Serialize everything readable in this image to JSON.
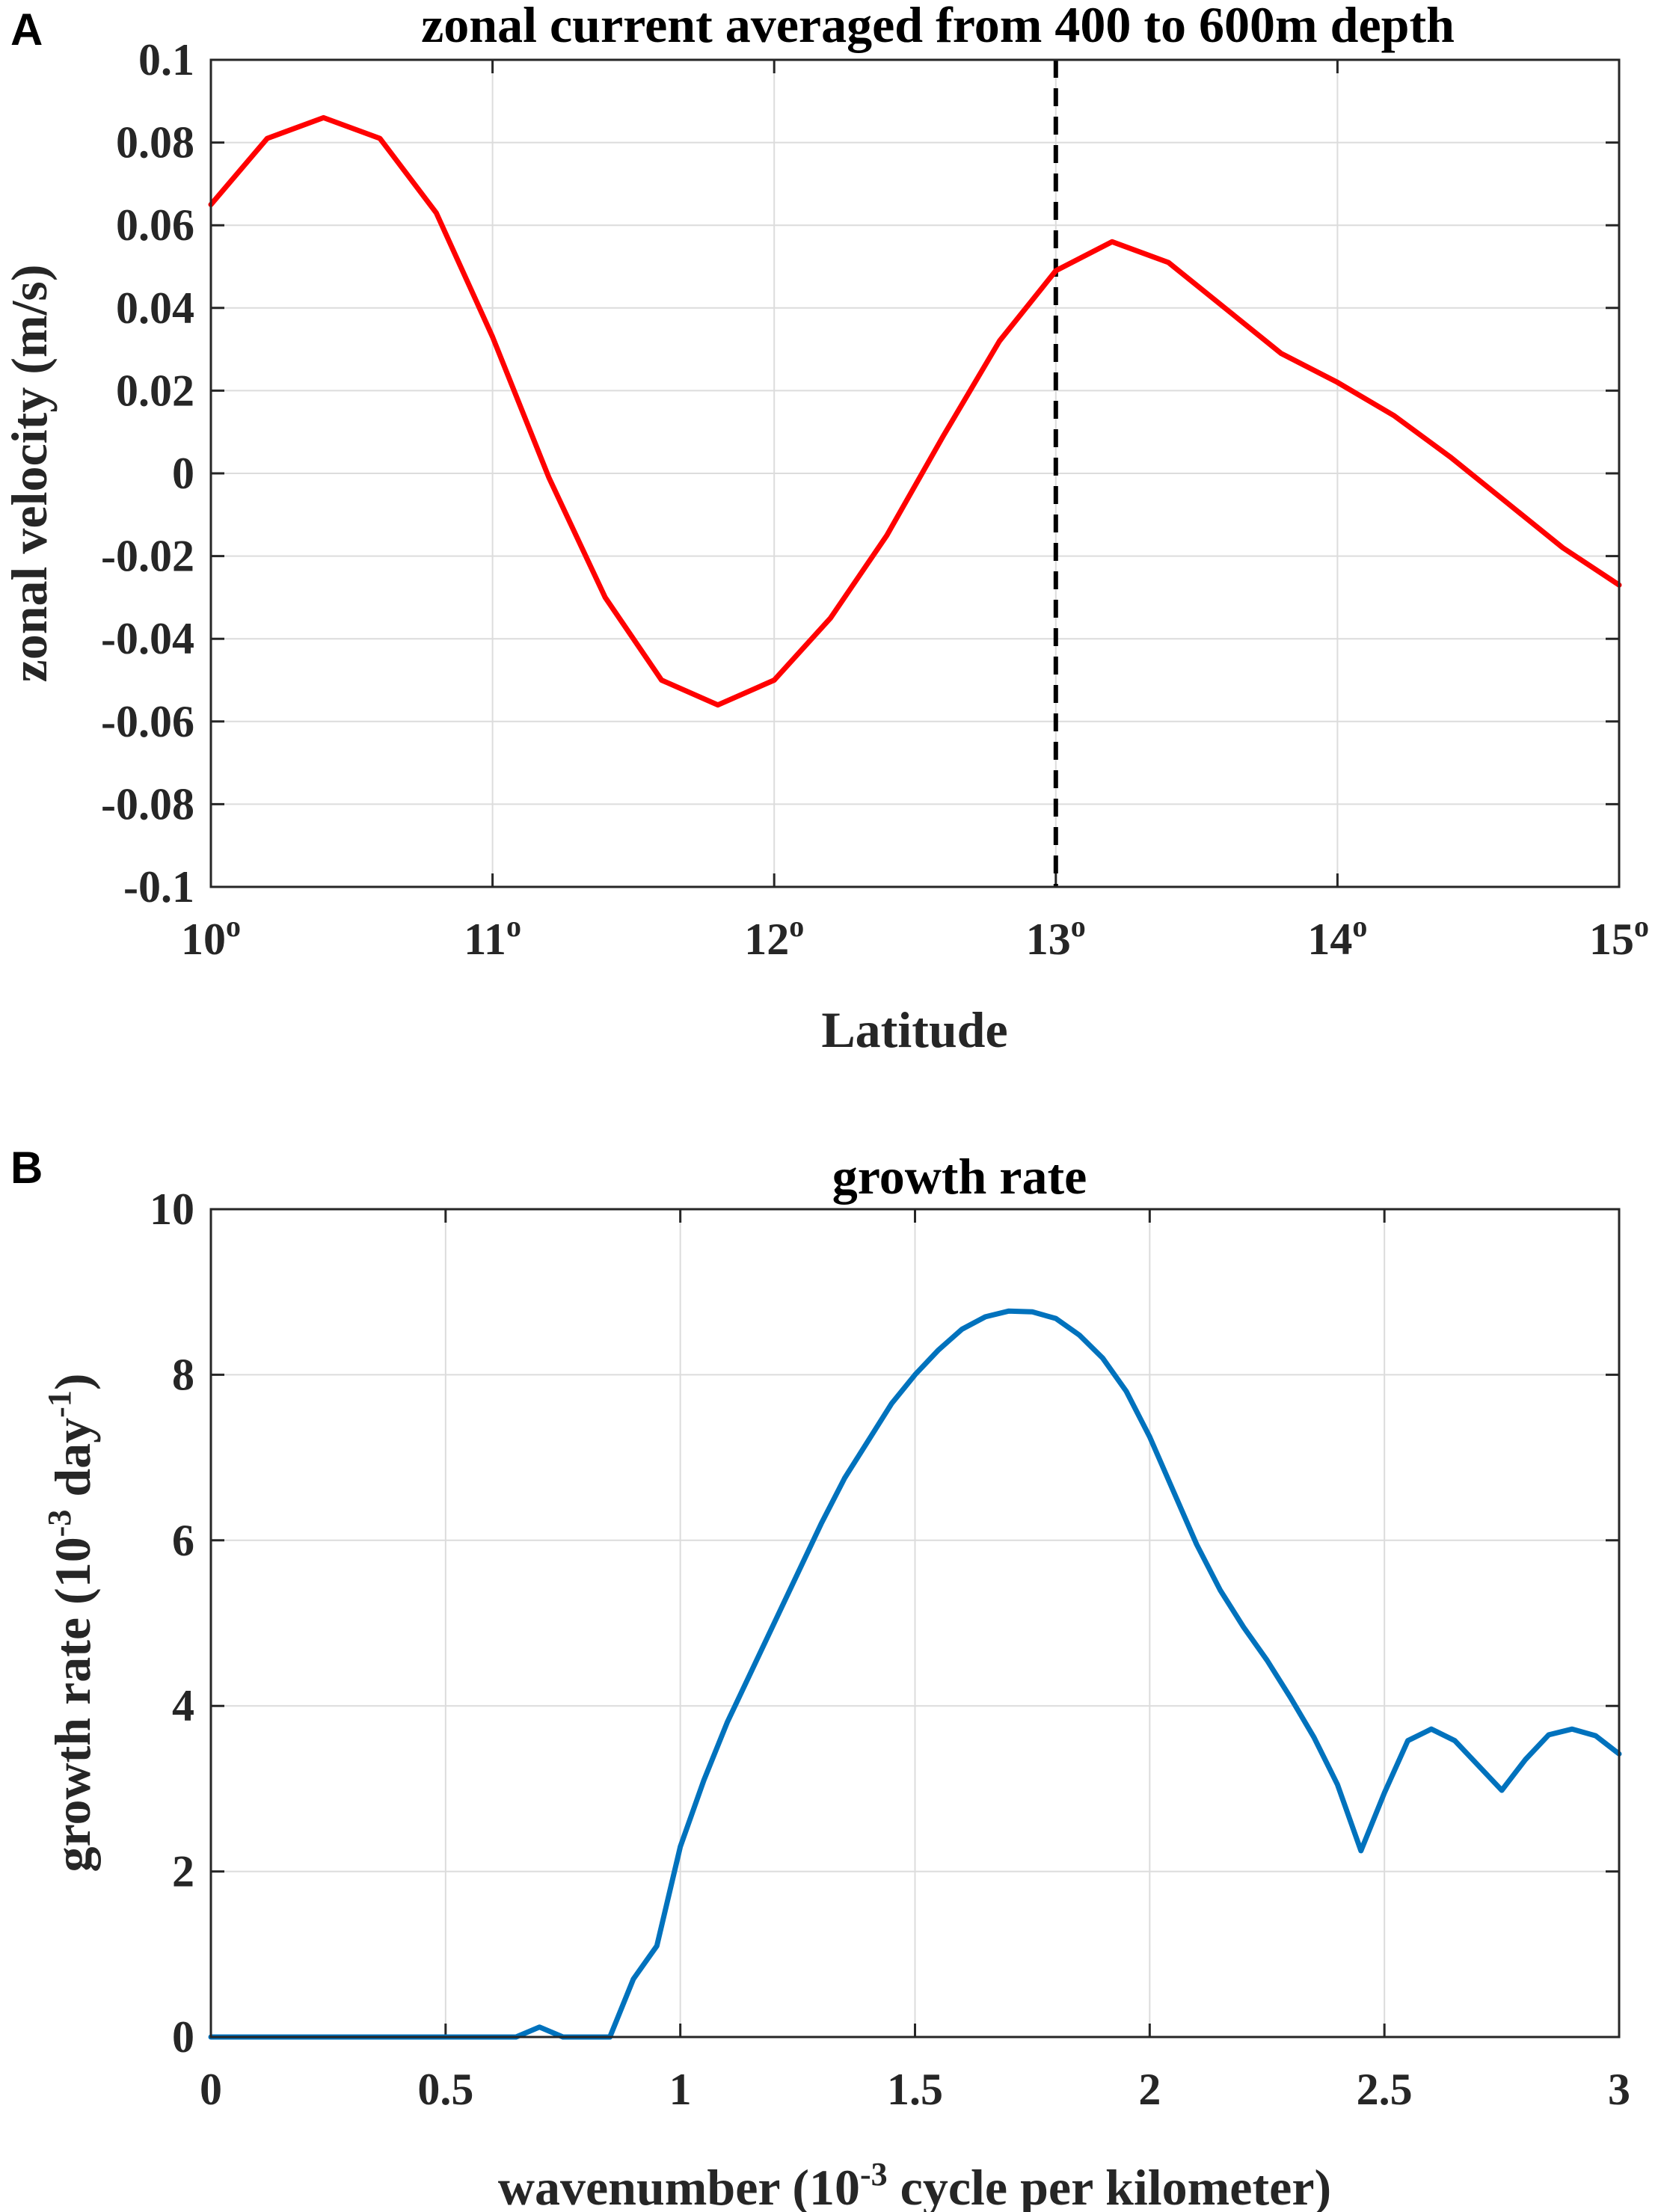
{
  "figure": {
    "panels": [
      "A",
      "B"
    ]
  },
  "chart_data": [
    {
      "type": "line",
      "panel_label": "A",
      "title": "zonal current averaged from 400 to 600m depth",
      "xlabel": "Latitude",
      "ylabel": "zonal velocity (m/s)",
      "xlim": [
        10,
        15
      ],
      "ylim": [
        -0.1,
        0.1
      ],
      "xticks": [
        10,
        11,
        12,
        13,
        14,
        15
      ],
      "xtick_labels": [
        "10",
        "11",
        "12",
        "13",
        "14",
        "15"
      ],
      "xtick_suffix": "o",
      "yticks": [
        0.1,
        0.08,
        0.06,
        0.04,
        0.02,
        0,
        -0.02,
        -0.04,
        -0.06,
        -0.08,
        -0.1
      ],
      "ytick_labels": [
        "0.1",
        "0.08",
        "0.06",
        "0.04",
        "0.02",
        "0",
        "-0.02",
        "-0.04",
        "-0.06",
        "-0.08",
        "-0.1"
      ],
      "grid": true,
      "series": [
        {
          "name": "zonal current",
          "color": "#ff0000",
          "x": [
            10.0,
            10.2,
            10.4,
            10.6,
            10.8,
            11.0,
            11.2,
            11.4,
            11.6,
            11.8,
            12.0,
            12.2,
            12.4,
            12.6,
            12.8,
            13.0,
            13.2,
            13.4,
            13.6,
            13.8,
            14.0,
            14.2,
            14.4,
            14.6,
            14.8,
            15.0
          ],
          "y": [
            0.065,
            0.081,
            0.086,
            0.081,
            0.063,
            0.033,
            -0.001,
            -0.03,
            -0.05,
            -0.056,
            -0.05,
            -0.035,
            -0.015,
            0.009,
            0.032,
            0.049,
            0.056,
            0.051,
            0.04,
            0.029,
            0.022,
            0.014,
            0.004,
            -0.007,
            -0.018,
            -0.027
          ]
        }
      ],
      "vline": {
        "x": 13,
        "color": "#000000",
        "style": "dashed"
      }
    },
    {
      "type": "line",
      "panel_label": "B",
      "title": "growth rate",
      "xlabel_parts": [
        "wavenumber (10",
        "-3",
        " cycle per kilometer)"
      ],
      "ylabel_parts": [
        "growth rate (10",
        "-3",
        " day",
        "-1",
        ")"
      ],
      "xlim": [
        0,
        3
      ],
      "ylim": [
        0,
        10
      ],
      "xticks": [
        0,
        0.5,
        1,
        1.5,
        2,
        2.5,
        3
      ],
      "xtick_labels": [
        "0",
        "0.5",
        "1",
        "1.5",
        "2",
        "2.5",
        "3"
      ],
      "yticks": [
        0,
        2,
        4,
        6,
        8,
        10
      ],
      "ytick_labels": [
        "0",
        "2",
        "4",
        "6",
        "8",
        "10"
      ],
      "grid": true,
      "series": [
        {
          "name": "growth rate",
          "color": "#0072bd",
          "x": [
            0,
            0.05,
            0.1,
            0.15,
            0.2,
            0.25,
            0.3,
            0.35,
            0.4,
            0.45,
            0.5,
            0.55,
            0.6,
            0.65,
            0.7,
            0.75,
            0.8,
            0.85,
            0.9,
            0.95,
            1.0,
            1.05,
            1.1,
            1.15,
            1.2,
            1.25,
            1.3,
            1.35,
            1.4,
            1.45,
            1.5,
            1.55,
            1.6,
            1.65,
            1.7,
            1.75,
            1.8,
            1.85,
            1.9,
            1.95,
            2.0,
            2.05,
            2.1,
            2.15,
            2.2,
            2.25,
            2.3,
            2.35,
            2.4,
            2.45,
            2.5,
            2.55,
            2.6,
            2.65,
            2.7,
            2.75,
            2.8,
            2.85,
            2.9,
            2.95,
            3.0
          ],
          "y": [
            0,
            0,
            0,
            0,
            0,
            0,
            0,
            0,
            0,
            0,
            0,
            0,
            0,
            0,
            0.12,
            0,
            0,
            0,
            0.7,
            1.1,
            2.3,
            3.1,
            3.8,
            4.4,
            5.0,
            5.6,
            6.2,
            6.75,
            7.2,
            7.65,
            8.0,
            8.3,
            8.55,
            8.7,
            8.77,
            8.76,
            8.68,
            8.48,
            8.2,
            7.8,
            7.25,
            6.6,
            5.95,
            5.4,
            4.95,
            4.55,
            4.1,
            3.62,
            3.05,
            2.25,
            2.95,
            3.58,
            3.72,
            3.58,
            3.28,
            2.98,
            3.35,
            3.65,
            3.72,
            3.64,
            3.42
          ]
        }
      ]
    }
  ]
}
